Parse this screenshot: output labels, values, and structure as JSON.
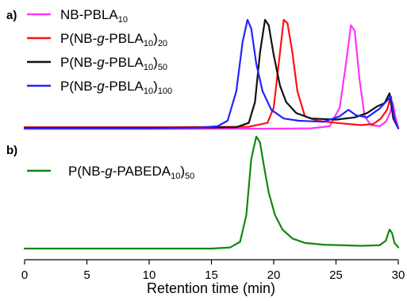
{
  "chart_data": [
    {
      "type": "line",
      "panel_label": "a)",
      "xlim": [
        0,
        30
      ],
      "legend_placement": "top-left",
      "series": [
        {
          "name_parts": [
            [
              "NB-PBLA",
              ""
            ],
            [
              "10",
              "sub"
            ]
          ],
          "color": "#ff33ff",
          "points": [
            [
              0,
              0.005
            ],
            [
              10,
              0.005
            ],
            [
              20,
              0.007
            ],
            [
              23,
              0.01
            ],
            [
              24.5,
              0.03
            ],
            [
              25.3,
              0.2
            ],
            [
              25.8,
              0.6
            ],
            [
              26.2,
              0.95
            ],
            [
              26.5,
              0.9
            ],
            [
              26.9,
              0.45
            ],
            [
              27.3,
              0.12
            ],
            [
              27.8,
              0.04
            ],
            [
              28.5,
              0.03
            ],
            [
              29,
              0.07
            ],
            [
              29.3,
              0.14
            ],
            [
              29.55,
              0.24
            ],
            [
              29.8,
              0.1
            ],
            [
              30,
              0.01
            ]
          ]
        },
        {
          "name_parts": [
            [
              "P(NB-",
              ""
            ],
            [
              "g",
              "italic"
            ],
            [
              "-PBLA",
              ""
            ],
            [
              "10",
              "sub"
            ],
            [
              ")",
              ""
            ],
            [
              "20",
              "sub"
            ]
          ],
          "color": "#ff1111",
          "points": [
            [
              0,
              0.02
            ],
            [
              12,
              0.02
            ],
            [
              18,
              0.025
            ],
            [
              19.5,
              0.06
            ],
            [
              20,
              0.2
            ],
            [
              20.4,
              0.6
            ],
            [
              20.8,
              1.0
            ],
            [
              21.1,
              0.97
            ],
            [
              21.5,
              0.7
            ],
            [
              21.9,
              0.35
            ],
            [
              22.5,
              0.12
            ],
            [
              23.5,
              0.08
            ],
            [
              25,
              0.06
            ],
            [
              27,
              0.04
            ],
            [
              28,
              0.05
            ],
            [
              28.6,
              0.1
            ],
            [
              29.1,
              0.18
            ],
            [
              29.4,
              0.3
            ],
            [
              29.7,
              0.1
            ],
            [
              30,
              0.01
            ]
          ]
        },
        {
          "name_parts": [
            [
              "P(NB-",
              ""
            ],
            [
              "g",
              "italic"
            ],
            [
              "-PBLA",
              ""
            ],
            [
              "10",
              "sub"
            ],
            [
              ")",
              ""
            ],
            [
              "50",
              "sub"
            ]
          ],
          "color": "#111111",
          "points": [
            [
              0,
              0.015
            ],
            [
              12,
              0.015
            ],
            [
              17,
              0.02
            ],
            [
              18,
              0.06
            ],
            [
              18.5,
              0.25
            ],
            [
              18.9,
              0.7
            ],
            [
              19.3,
              1.0
            ],
            [
              19.6,
              0.95
            ],
            [
              20,
              0.68
            ],
            [
              20.5,
              0.4
            ],
            [
              21,
              0.25
            ],
            [
              21.8,
              0.15
            ],
            [
              23,
              0.1
            ],
            [
              25,
              0.09
            ],
            [
              26.5,
              0.11
            ],
            [
              27.5,
              0.15
            ],
            [
              28.3,
              0.21
            ],
            [
              28.9,
              0.24
            ],
            [
              29.3,
              0.33
            ],
            [
              29.6,
              0.1
            ],
            [
              30,
              0.01
            ]
          ]
        },
        {
          "name_parts": [
            [
              "P(NB-",
              ""
            ],
            [
              "g",
              "italic"
            ],
            [
              "-PBLA",
              ""
            ],
            [
              "10",
              "sub"
            ],
            [
              ")",
              ""
            ],
            [
              "100",
              "sub"
            ]
          ],
          "color": "#2222ff",
          "points": [
            [
              0,
              0.01
            ],
            [
              10,
              0.01
            ],
            [
              14,
              0.015
            ],
            [
              15.5,
              0.03
            ],
            [
              16.3,
              0.08
            ],
            [
              17,
              0.35
            ],
            [
              17.5,
              0.8
            ],
            [
              17.9,
              1.0
            ],
            [
              18.2,
              0.92
            ],
            [
              18.6,
              0.6
            ],
            [
              19.1,
              0.35
            ],
            [
              19.8,
              0.18
            ],
            [
              20.8,
              0.1
            ],
            [
              22,
              0.08
            ],
            [
              24,
              0.07
            ],
            [
              25.3,
              0.12
            ],
            [
              26,
              0.18
            ],
            [
              26.6,
              0.13
            ],
            [
              27.5,
              0.11
            ],
            [
              28.5,
              0.19
            ],
            [
              29,
              0.25
            ],
            [
              29.4,
              0.3
            ],
            [
              29.7,
              0.09
            ],
            [
              30,
              0.01
            ]
          ]
        }
      ]
    },
    {
      "type": "line",
      "panel_label": "b)",
      "xlim": [
        0,
        30
      ],
      "xlabel": "Retention time (min)",
      "xticks": [
        0,
        5,
        10,
        15,
        20,
        25,
        30
      ],
      "legend_placement": "top-left",
      "series": [
        {
          "name_parts": [
            [
              "P(NB-",
              ""
            ],
            [
              "g",
              "italic"
            ],
            [
              "-PABEDA",
              ""
            ],
            [
              "10",
              "sub"
            ],
            [
              ")",
              ""
            ],
            [
              "50",
              "sub"
            ]
          ],
          "color": "#118811",
          "points": [
            [
              0,
              0.0
            ],
            [
              10,
              0.0
            ],
            [
              15,
              0.0
            ],
            [
              16.5,
              0.01
            ],
            [
              17.3,
              0.06
            ],
            [
              17.8,
              0.3
            ],
            [
              18.2,
              0.8
            ],
            [
              18.6,
              1.0
            ],
            [
              18.9,
              0.95
            ],
            [
              19.2,
              0.75
            ],
            [
              19.6,
              0.5
            ],
            [
              20.1,
              0.3
            ],
            [
              20.7,
              0.17
            ],
            [
              21.5,
              0.09
            ],
            [
              22.5,
              0.05
            ],
            [
              24,
              0.035
            ],
            [
              27,
              0.025
            ],
            [
              28.5,
              0.03
            ],
            [
              29,
              0.07
            ],
            [
              29.3,
              0.17
            ],
            [
              29.5,
              0.14
            ],
            [
              29.7,
              0.05
            ],
            [
              30,
              0.01
            ]
          ]
        }
      ]
    }
  ]
}
